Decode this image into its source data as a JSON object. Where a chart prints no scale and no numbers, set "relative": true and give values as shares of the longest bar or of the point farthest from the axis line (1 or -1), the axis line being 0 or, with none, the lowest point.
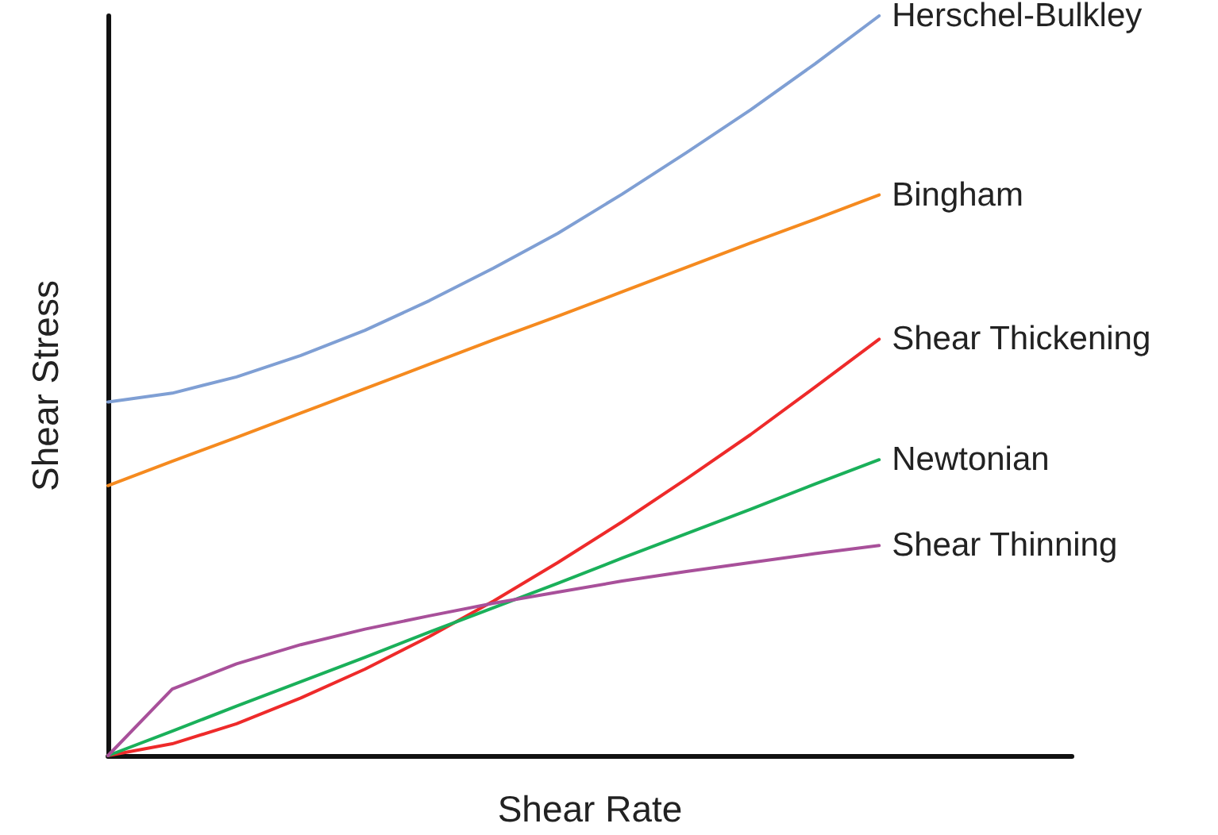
{
  "chart_data": {
    "type": "line",
    "relative": true,
    "xlabel": "Shear Rate",
    "ylabel": "Shear Stress",
    "categories": [
      null,
      null,
      null,
      null,
      null,
      null,
      null,
      null,
      null,
      null,
      null,
      null,
      null,
      null,
      null,
      null
    ],
    "series": [
      {
        "name": "Herschel-Bulkley",
        "color": "#7f9fd4",
        "values": [
          0.478,
          0.49,
          0.512,
          0.541,
          0.575,
          0.615,
          0.659,
          0.706,
          0.759,
          0.815,
          0.873,
          0.935,
          1.0,
          null,
          null,
          null
        ]
      },
      {
        "name": "Bingham",
        "color": "#f58a1f",
        "values": [
          0.365,
          0.398,
          0.43,
          0.463,
          0.496,
          0.529,
          0.562,
          0.594,
          0.627,
          0.66,
          0.693,
          0.725,
          0.758,
          null,
          null,
          null
        ]
      },
      {
        "name": "Shear Thickening",
        "color": "#ee2a2a",
        "values": [
          0,
          0.016,
          0.043,
          0.078,
          0.117,
          0.161,
          0.209,
          0.261,
          0.316,
          0.374,
          0.434,
          0.498,
          0.563,
          null,
          null,
          null
        ]
      },
      {
        "name": "Newtonian",
        "color": "#1ab05a",
        "values": [
          0,
          0.033,
          0.067,
          0.1,
          0.133,
          0.167,
          0.2,
          0.233,
          0.267,
          0.3,
          0.333,
          0.367,
          0.4,
          null,
          null,
          null
        ]
      },
      {
        "name": "Shear Thinning",
        "color": "#a8509a",
        "values": [
          0,
          0.09,
          0.124,
          0.15,
          0.171,
          0.189,
          0.206,
          0.221,
          0.236,
          0.249,
          0.261,
          0.273,
          0.284,
          null,
          null,
          null
        ]
      }
    ],
    "grid": false,
    "legend": false,
    "marker": "none",
    "line_style": "solid"
  }
}
